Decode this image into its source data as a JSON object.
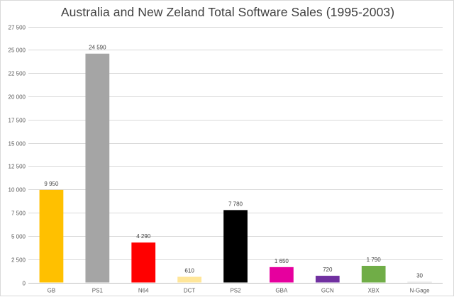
{
  "chart_data": {
    "type": "bar",
    "title": "Australia and New Zeland Total Software Sales (1995-2003)",
    "xlabel": "",
    "ylabel": "",
    "categories": [
      "GB",
      "PS1",
      "N64",
      "DCT",
      "PS2",
      "GBA",
      "GCN",
      "XBX",
      "N-Gage"
    ],
    "values": [
      9950,
      24590,
      4290,
      610,
      7780,
      1650,
      720,
      1790,
      30
    ],
    "value_labels": [
      "9 950",
      "24 590",
      "4 290",
      "610",
      "7 780",
      "1 650",
      "720",
      "1 790",
      "30"
    ],
    "colors": [
      "#ffc000",
      "#a5a5a5",
      "#ff0000",
      "#ffe699",
      "#000000",
      "#e6009e",
      "#7030a0",
      "#70ad47",
      "#f2f2f2"
    ],
    "ylim": [
      0,
      27500
    ],
    "yticks": [
      0,
      2500,
      5000,
      7500,
      10000,
      12500,
      15000,
      17500,
      20000,
      22500,
      25000,
      27500
    ],
    "ytick_labels": [
      "0",
      "2 500",
      "5 000",
      "7 500",
      "10 000",
      "12 500",
      "15 000",
      "17 500",
      "20 000",
      "22 500",
      "25 000",
      "27 500"
    ],
    "grid": true,
    "legend": "none"
  }
}
